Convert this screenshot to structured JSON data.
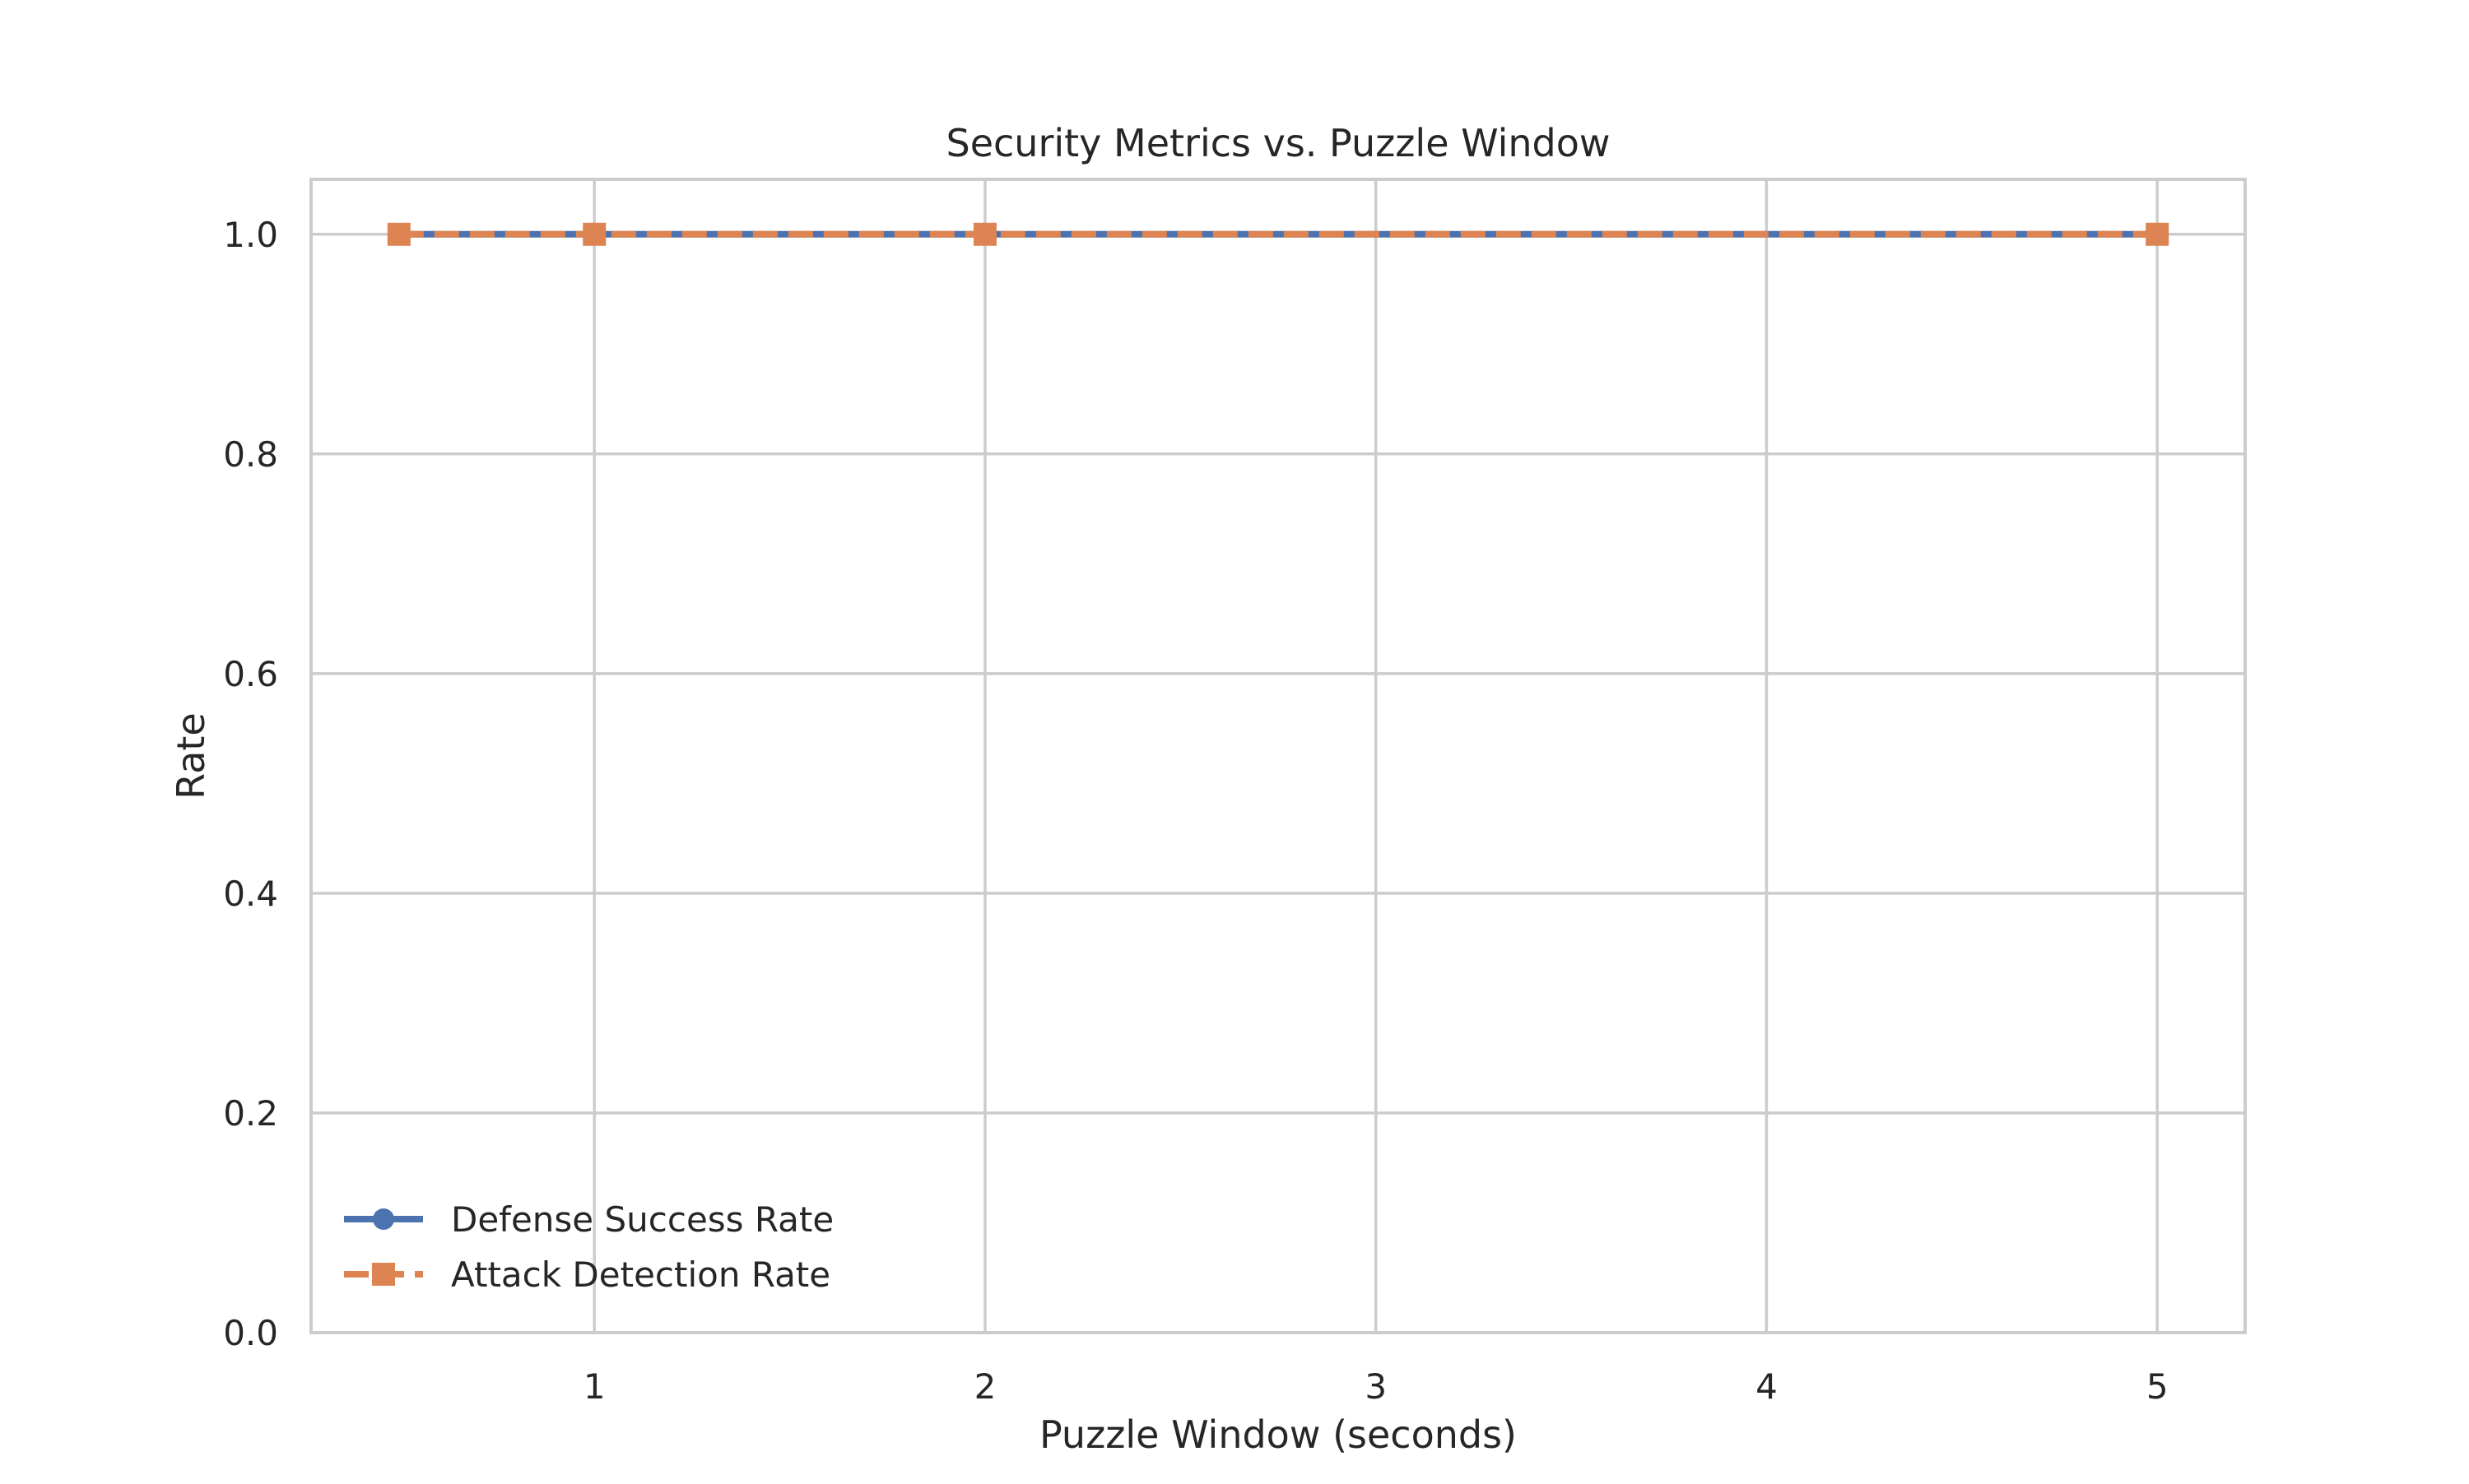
{
  "chart_data": {
    "type": "line",
    "title": "Security Metrics vs. Puzzle Window",
    "xlabel": "Puzzle Window (seconds)",
    "ylabel": "Rate",
    "xlim": [
      0.275,
      5.225
    ],
    "ylim": [
      0.0,
      1.05
    ],
    "xticks": [
      1,
      2,
      3,
      4,
      5
    ],
    "xtick_labels": [
      "1",
      "2",
      "3",
      "4",
      "5"
    ],
    "yticks": [
      0.0,
      0.2,
      0.4,
      0.6,
      0.8,
      1.0
    ],
    "ytick_labels": [
      "0.0",
      "0.2",
      "0.4",
      "0.6",
      "0.8",
      "1.0"
    ],
    "grid": true,
    "legend_position": "lower-left",
    "x": [
      0.5,
      1,
      2,
      5
    ],
    "series": [
      {
        "name": "Defense Success Rate",
        "values": [
          1.0,
          1.0,
          1.0,
          1.0
        ],
        "color": "#4c72b0",
        "marker": "circle",
        "line_style": "solid"
      },
      {
        "name": "Attack Detection Rate",
        "values": [
          1.0,
          1.0,
          1.0,
          1.0
        ],
        "color": "#dd8452",
        "marker": "square",
        "line_style": "dashed"
      }
    ]
  }
}
